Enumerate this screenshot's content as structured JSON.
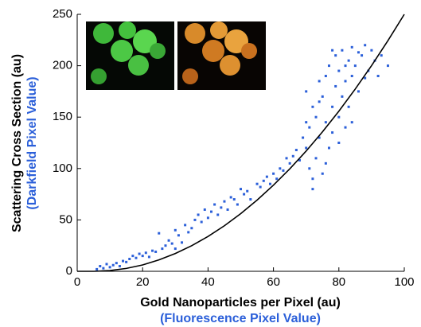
{
  "chart_data": {
    "type": "scatter",
    "xlabel": "Gold Nanoparticles per Pixel (au)",
    "xlabel2": "(Fluorescence Pixel Value)",
    "ylabel": "Scattering Cross Section (au)",
    "ylabel2": "(Darkfield Pixel Value)",
    "xlim": [
      0,
      100
    ],
    "xticks": [
      0,
      20,
      40,
      60,
      80,
      100
    ],
    "ylim": [
      0,
      250
    ],
    "yticks": [
      0,
      50,
      100,
      150,
      200,
      250
    ],
    "series": [
      {
        "type": "scatter",
        "color": "#2b5fd9",
        "x": [
          6,
          7,
          8,
          9,
          10,
          11,
          12,
          13,
          14,
          15,
          16,
          17,
          18,
          19,
          20,
          21,
          22,
          23,
          24,
          25,
          26,
          27,
          28,
          29,
          30,
          30,
          31,
          32,
          33,
          34,
          35,
          36,
          37,
          38,
          39,
          40,
          41,
          42,
          43,
          44,
          45,
          46,
          47,
          48,
          49,
          50,
          51,
          52,
          53,
          55,
          56,
          57,
          58,
          59,
          60,
          61,
          62,
          63,
          64,
          65,
          66,
          67,
          68,
          69,
          70,
          70,
          71,
          71,
          72,
          72,
          73,
          73,
          74,
          74,
          75,
          75,
          76,
          76,
          77,
          77,
          78,
          78,
          79,
          79,
          80,
          80,
          81,
          81,
          82,
          82,
          83,
          83,
          84,
          84,
          85,
          86,
          87,
          88,
          89,
          90,
          91,
          92,
          93,
          95,
          70,
          72,
          74,
          76,
          78,
          80,
          82,
          84,
          86,
          88
        ],
        "values": [
          2,
          5,
          3,
          7,
          4,
          6,
          8,
          5,
          10,
          9,
          12,
          15,
          13,
          17,
          15,
          18,
          14,
          20,
          19,
          37,
          22,
          25,
          30,
          27,
          40,
          22,
          35,
          28,
          45,
          38,
          42,
          50,
          55,
          48,
          60,
          52,
          58,
          65,
          55,
          62,
          68,
          60,
          72,
          70,
          65,
          80,
          75,
          78,
          70,
          85,
          82,
          88,
          92,
          85,
          95,
          90,
          100,
          98,
          110,
          105,
          112,
          118,
          108,
          130,
          120,
          175,
          140,
          100,
          160,
          90,
          150,
          110,
          185,
          130,
          170,
          95,
          190,
          145,
          120,
          200,
          160,
          135,
          210,
          180,
          150,
          195,
          215,
          170,
          185,
          140,
          205,
          160,
          218,
          190,
          200,
          175,
          210,
          220,
          195,
          215,
          205,
          190,
          210,
          200,
          145,
          80,
          165,
          105,
          215,
          125,
          200,
          145,
          213,
          188
        ]
      },
      {
        "type": "line",
        "color": "#000000",
        "x": [
          0,
          5,
          10,
          15,
          20,
          25,
          30,
          35,
          40,
          45,
          50,
          55,
          60,
          65,
          70,
          75,
          80,
          85,
          90,
          95,
          100
        ],
        "values": [
          0,
          0,
          0.7,
          2.8,
          6.2,
          11.1,
          17.3,
          24.9,
          33.9,
          44.3,
          56.1,
          69.3,
          83.8,
          99.7,
          117.0,
          135.7,
          155.8,
          177.3,
          200.1,
          224.4,
          250.0
        ]
      }
    ]
  }
}
